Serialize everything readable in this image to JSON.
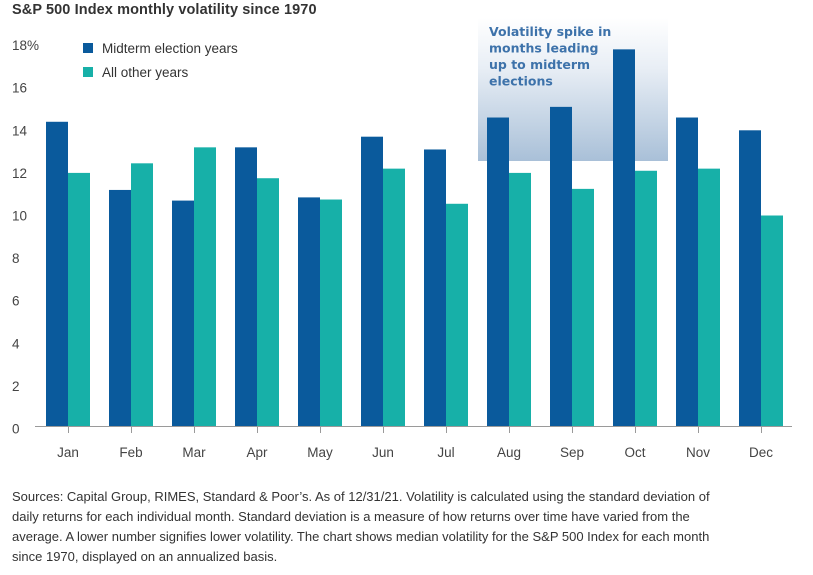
{
  "chart_data": {
    "type": "bar",
    "title": "S&P 500 Index monthly volatility since 1970",
    "xlabel": "",
    "ylabel": "",
    "ylim": [
      0,
      18
    ],
    "yticks": [
      0,
      2,
      4,
      6,
      8,
      10,
      12,
      14,
      16,
      18
    ],
    "ytick_labels": [
      "0",
      "2",
      "4",
      "6",
      "8",
      "10",
      "12",
      "14",
      "16",
      "18%"
    ],
    "grid": false,
    "legend_position": "top-left",
    "categories": [
      "Jan",
      "Feb",
      "Mar",
      "Apr",
      "May",
      "Jun",
      "Jul",
      "Aug",
      "Sep",
      "Oct",
      "Nov",
      "Dec"
    ],
    "series": [
      {
        "name": "Midterm election years",
        "color": "#0a5a9c",
        "values": [
          14.4,
          11.2,
          10.7,
          13.2,
          10.85,
          13.7,
          13.1,
          14.6,
          15.1,
          17.8,
          14.6,
          14.0
        ]
      },
      {
        "name": "All other years",
        "color": "#17b0a8",
        "values": [
          12.0,
          12.45,
          13.2,
          11.75,
          10.75,
          12.2,
          10.55,
          12.0,
          11.25,
          12.1,
          12.2,
          10.0
        ]
      }
    ],
    "annotation": {
      "text_lines": [
        "Volatility spike in",
        "months leading",
        "up to midterm",
        "elections"
      ],
      "spans_categories": [
        "Aug",
        "Sep",
        "Oct"
      ],
      "text_color": "#3d72aa"
    }
  },
  "footnote": {
    "lines": [
      "Sources: Capital Group, RIMES, Standard & Poor’s. As of 12/31/21. Volatility is calculated using the standard deviation of",
      "daily returns for each individual month. Standard deviation is a measure of how returns over time have varied from the",
      "average. A lower number signifies lower volatility. The chart shows median volatility for the S&P 500 Index for each month",
      "since 1970, displayed on an annualized basis."
    ]
  }
}
